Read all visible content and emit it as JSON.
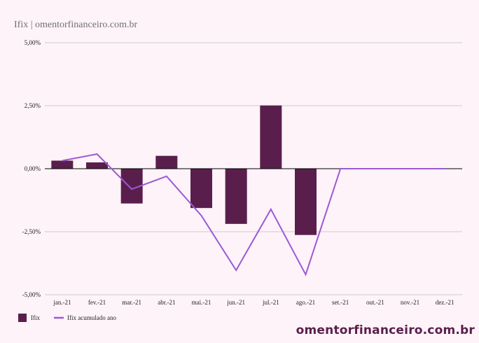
{
  "title": "Ifix | omentorfinanceiro.com.br",
  "watermark": "omentorfinanceiro.com.br",
  "colors": {
    "bar": "#5a1e4c",
    "line": "#9b59d6",
    "grid": "#cccccc",
    "zero": "#000000",
    "background": "#fdf3f8"
  },
  "chart_data": {
    "type": "bar",
    "categories": [
      "jan.-21",
      "fev.-21",
      "mar.-21",
      "abr.-21",
      "mai.-21",
      "jun.-21",
      "jul.-21",
      "ago.-21",
      "set.-21",
      "out.-21",
      "nov.-21",
      "dez.-21"
    ],
    "series": [
      {
        "name": "Ifix",
        "type": "bar",
        "values": [
          0.32,
          0.25,
          -1.38,
          0.51,
          -1.56,
          -2.19,
          2.51,
          -2.63,
          null,
          null,
          null,
          null
        ]
      },
      {
        "name": "Ifix acumulado ano",
        "type": "line",
        "values": [
          0.32,
          0.58,
          -0.81,
          -0.3,
          -1.86,
          -4.03,
          -1.61,
          -4.2,
          0,
          0,
          0,
          0
        ]
      }
    ],
    "y_ticks": [
      "5,00%",
      "2,50%",
      "0,00%",
      "-2,50%",
      "-5,00%"
    ],
    "ylim": [
      -5,
      5
    ],
    "grid": true,
    "legend_position": "bottom-left"
  }
}
